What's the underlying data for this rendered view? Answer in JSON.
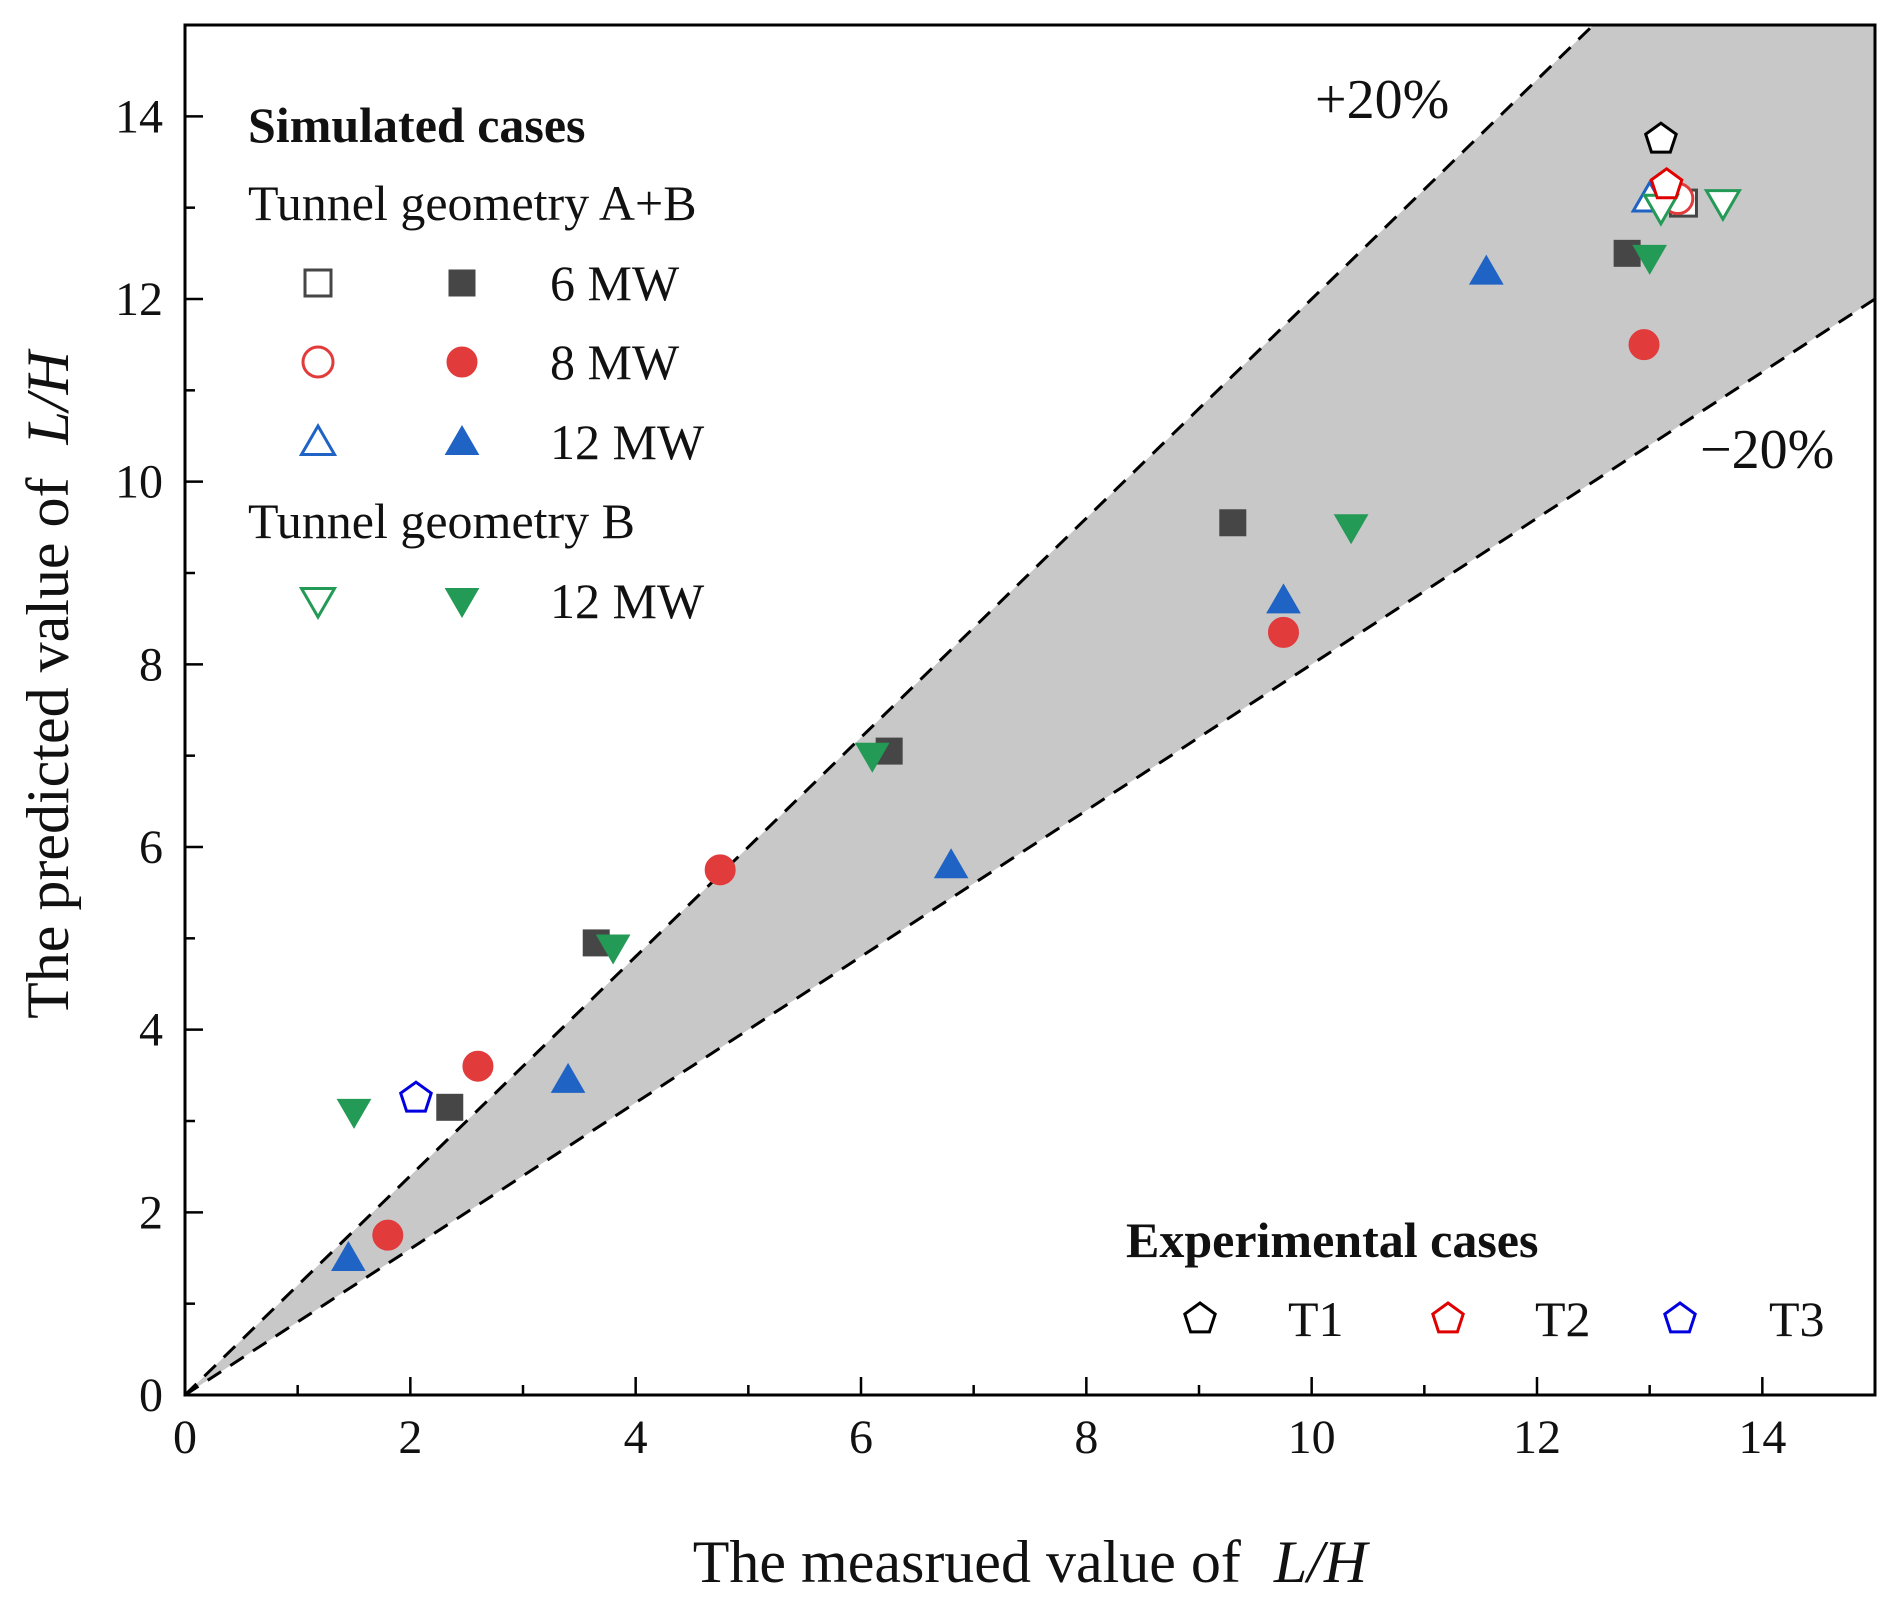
{
  "chart_data": {
    "type": "scatter",
    "xlabel": "The measrued value of",
    "ylabel": "The predicted value of",
    "axis_variable": "L/H",
    "xlim": [
      0,
      15
    ],
    "ylim": [
      0,
      15
    ],
    "x_ticks": [
      0,
      2,
      4,
      6,
      8,
      10,
      12,
      14
    ],
    "y_ticks": [
      0,
      2,
      4,
      6,
      8,
      10,
      12,
      14
    ],
    "band": {
      "upper_label": "+20%",
      "lower_label": "−20%",
      "upper_factor": 1.2,
      "lower_factor": 0.8,
      "fill": "#c8c8c8"
    },
    "legend_simulated": {
      "title": "Simulated cases",
      "group1": "Tunnel geometry A+B",
      "group2": "Tunnel geometry B",
      "rows": [
        {
          "label": "6 MW",
          "marker": "square",
          "color": "#464646"
        },
        {
          "label": "8 MW",
          "marker": "circle",
          "color": "#e23b3b"
        },
        {
          "label": "12 MW",
          "marker": "triangle-up",
          "color": "#1f63c4"
        },
        {
          "label": "12 MW",
          "marker": "triangle-down",
          "color": "#239a55"
        }
      ]
    },
    "legend_experimental": {
      "title": "Experimental cases",
      "items": [
        {
          "label": "T1",
          "color": "#000000"
        },
        {
          "label": "T2",
          "color": "#e00000"
        },
        {
          "label": "T3",
          "color": "#0000e0"
        }
      ]
    },
    "series": [
      {
        "name": "6 MW (A+B)",
        "marker": "square",
        "color": "#464646",
        "x": [
          2.35,
          3.65,
          6.25,
          9.3,
          12.8
        ],
        "y": [
          3.15,
          4.95,
          7.05,
          9.55,
          12.5
        ]
      },
      {
        "name": "8 MW (A+B)",
        "marker": "circle",
        "color": "#e23b3b",
        "x": [
          1.8,
          2.6,
          4.75,
          9.75,
          12.95
        ],
        "y": [
          1.75,
          3.6,
          5.75,
          8.35,
          11.5
        ]
      },
      {
        "name": "12 MW (A+B)",
        "marker": "triangle-up",
        "color": "#1f63c4",
        "x": [
          1.45,
          3.4,
          6.8,
          9.75,
          11.55
        ],
        "y": [
          1.5,
          3.45,
          5.8,
          8.7,
          12.3
        ]
      },
      {
        "name": "12 MW (B)",
        "marker": "triangle-down",
        "color": "#239a55",
        "x": [
          1.5,
          3.8,
          6.1,
          10.35,
          13.0
        ],
        "y": [
          3.1,
          4.9,
          7.0,
          9.5,
          12.45
        ]
      },
      {
        "name": "6 MW (A+B) open",
        "marker": "square-open",
        "color": "#464646",
        "x": [
          13.3
        ],
        "y": [
          13.05
        ]
      },
      {
        "name": "8 MW (A+B) open",
        "marker": "circle-open",
        "color": "#e23b3b",
        "x": [
          13.25
        ],
        "y": [
          13.1
        ]
      },
      {
        "name": "12 MW (A+B) open",
        "marker": "triangle-up-open",
        "color": "#1f63c4",
        "x": [
          13.0
        ],
        "y": [
          13.1
        ]
      },
      {
        "name": "12 MW (B) open",
        "marker": "triangle-down-open",
        "color": "#239a55",
        "x": [
          13.1,
          13.65
        ],
        "y": [
          13.0,
          13.05
        ]
      },
      {
        "name": "T1",
        "marker": "pentagon-open",
        "color": "#000000",
        "x": [
          13.1
        ],
        "y": [
          13.75
        ]
      },
      {
        "name": "T2",
        "marker": "pentagon-open",
        "color": "#e00000",
        "x": [
          13.15
        ],
        "y": [
          13.25
        ]
      },
      {
        "name": "T3",
        "marker": "pentagon-open",
        "color": "#0000e0",
        "x": [
          2.05
        ],
        "y": [
          3.25
        ]
      }
    ]
  }
}
